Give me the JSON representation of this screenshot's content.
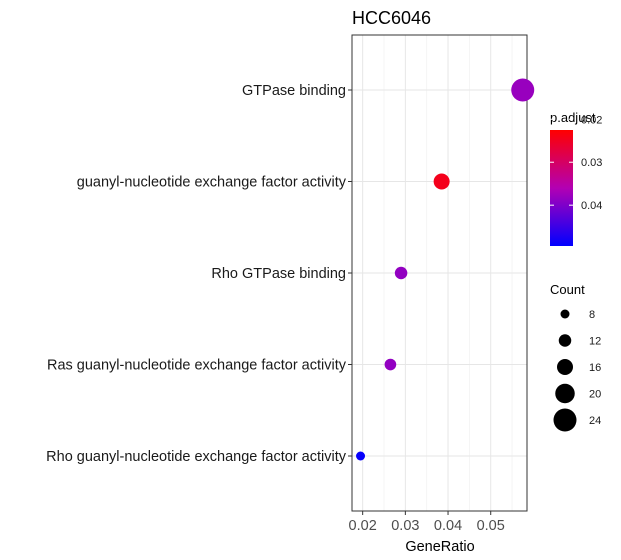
{
  "chart_data": {
    "type": "scatter",
    "title": "HCC6046",
    "xlabel": "GeneRatio",
    "ylabel": "",
    "xlim": [
      0.0175,
      0.0585
    ],
    "xticks": [
      0.02,
      0.03,
      0.04,
      0.05
    ],
    "xtick_labels": [
      "0.02",
      "0.03",
      "0.04",
      "0.05"
    ],
    "grid": true,
    "legend_position": "right",
    "categories": [
      "GTPase binding",
      "guanyl-nucleotide exchange factor activity",
      "Rho GTPase binding",
      "Ras guanyl-nucleotide exchange factor activity",
      "Rho guanyl-nucleotide exchange factor activity"
    ],
    "points": [
      {
        "term": "GTPase binding",
        "gene_ratio": 0.0575,
        "count": 24,
        "p_adjust": 0.038
      },
      {
        "term": "guanyl-nucleotide exchange factor activity",
        "gene_ratio": 0.0385,
        "count": 16,
        "p_adjust": 0.0245
      },
      {
        "term": "Rho GTPase binding",
        "gene_ratio": 0.029,
        "count": 12,
        "p_adjust": 0.0385
      },
      {
        "term": "Ras guanyl-nucleotide exchange factor activity",
        "gene_ratio": 0.0265,
        "count": 11,
        "p_adjust": 0.0385
      },
      {
        "term": "Rho guanyl-nucleotide exchange factor activity",
        "gene_ratio": 0.0195,
        "count": 8,
        "p_adjust": 0.049
      }
    ],
    "color_legend": {
      "title": "p.adjust",
      "range": [
        0.0225,
        0.0495
      ],
      "ticks": [
        0.02,
        0.03,
        0.04
      ],
      "tick_labels": [
        "0.02",
        "0.03",
        "0.04"
      ],
      "colors": {
        "low": "#ff0000",
        "mid": "#b300b3",
        "high": "#0000ff"
      }
    },
    "size_legend": {
      "title": "Count",
      "values": [
        8,
        12,
        16,
        20,
        24
      ],
      "labels": [
        "8",
        "12",
        "16",
        "20",
        "24"
      ]
    }
  }
}
